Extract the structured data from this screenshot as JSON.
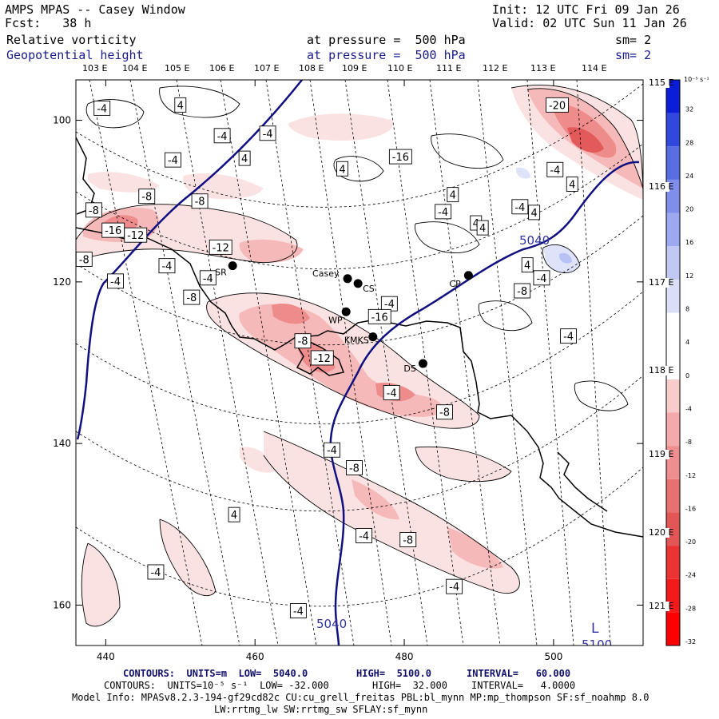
{
  "header": {
    "left1": "AMPS MPAS -- Casey Window",
    "left2": "Fcst:   38 h",
    "init": "Init: 12 UTC Fri 09 Jan 26",
    "valid": "Valid: 02 UTC Sun 11 Jan 26",
    "field1_name": "Relative vorticity",
    "field1_level": "at pressure =  500 hPa",
    "field1_sm": "sm= 2",
    "field2_name": "Geopotential height",
    "field2_level": "at pressure =  500 hPa",
    "field2_sm": "sm= 2"
  },
  "lon_labels": [
    "103 E",
    "104 E",
    "105 E",
    "106 E",
    "107 E",
    "108 E",
    "109 E",
    "110 E",
    "111 E",
    "112 E",
    "113 E",
    "114 E"
  ],
  "lat_labels": [
    "115 E",
    "116 E",
    "117 E",
    "118 E",
    "119 E",
    "120 E",
    "121 E"
  ],
  "colorbar": {
    "units_label": "10⁻⁵ s⁻¹",
    "ticks": [
      "32",
      "28",
      "24",
      "20",
      "16",
      "12",
      "8",
      "4",
      "0",
      "-4",
      "-8",
      "-12",
      "-16",
      "-20",
      "-24",
      "-28",
      "-32"
    ]
  },
  "footer": {
    "line1_a": "CONTOURS:  UNITS=m  LOW=  5040.0",
    "line1_b": "HIGH=  5100.0",
    "line1_c": "INTERVAL=   60.000",
    "line2_a": "CONTOURS:  UNITS=10⁻⁵ s⁻¹  LOW= -32.000",
    "line2_b": "HIGH=  32.000",
    "line2_c": "INTERVAL=   4.0000",
    "model1": "Model Info: MPASv8.2.3-194-gf29cd82c CU:cu_grell_freitas PBL:bl_mynn MP:mp_thompson SF:sf_noahmp 8.0",
    "model2": "LW:rrtmg_lw SW:rrtmg_sw SFLAY:sf_mynn"
  },
  "chart_data": {
    "type": "heatmap",
    "title": "AMPS MPAS -- Casey Window: 500 hPa relative vorticity and geopotential height",
    "x_axis": {
      "range": [
        436,
        512
      ],
      "ticks": [
        440,
        460,
        480,
        500
      ]
    },
    "y_axis": {
      "range": [
        165,
        95
      ],
      "ticks": [
        100,
        120,
        140,
        160
      ]
    },
    "vorticity_levels": [
      -32,
      -28,
      -24,
      -20,
      -16,
      -12,
      -8,
      -4,
      0,
      4,
      8,
      12,
      16,
      20,
      24,
      28,
      32
    ],
    "vorticity_units": "10⁻⁵ s⁻¹",
    "height_contours": [
      {
        "value": 5040,
        "label": "5040"
      },
      {
        "value": 5040,
        "label": "5040"
      },
      {
        "value": 5100,
        "label": "5100"
      }
    ],
    "vorticity_labels": [
      {
        "x": 439.5,
        "y": 98.6,
        "v": "-4"
      },
      {
        "x": 450.0,
        "y": 98.2,
        "v": "4"
      },
      {
        "x": 455.6,
        "y": 102.0,
        "v": "-4"
      },
      {
        "x": 449.0,
        "y": 105.0,
        "v": "-4"
      },
      {
        "x": 438.4,
        "y": 111.2,
        "v": "-8"
      },
      {
        "x": 445.5,
        "y": 109.5,
        "v": "-8"
      },
      {
        "x": 441.0,
        "y": 113.7,
        "v": "-16"
      },
      {
        "x": 444.0,
        "y": 114.3,
        "v": "-12"
      },
      {
        "x": 452.6,
        "y": 110.1,
        "v": "-8"
      },
      {
        "x": 455.4,
        "y": 115.8,
        "v": "-12"
      },
      {
        "x": 437.1,
        "y": 117.3,
        "v": "-8"
      },
      {
        "x": 441.3,
        "y": 120.0,
        "v": "-4"
      },
      {
        "x": 448.2,
        "y": 118.1,
        "v": "-4"
      },
      {
        "x": 453.7,
        "y": 119.6,
        "v": "-4"
      },
      {
        "x": 451.5,
        "y": 122.0,
        "v": "-8"
      },
      {
        "x": 461.7,
        "y": 101.7,
        "v": "-4"
      },
      {
        "x": 458.6,
        "y": 104.8,
        "v": "4"
      },
      {
        "x": 471.7,
        "y": 106.1,
        "v": "4"
      },
      {
        "x": 479.5,
        "y": 104.6,
        "v": "-16"
      },
      {
        "x": 485.2,
        "y": 111.4,
        "v": "-4"
      },
      {
        "x": 489.6,
        "y": 112.8,
        "v": "4"
      },
      {
        "x": 490.5,
        "y": 113.4,
        "v": "4"
      },
      {
        "x": 486.5,
        "y": 109.3,
        "v": "4"
      },
      {
        "x": 495.5,
        "y": 110.8,
        "v": "-4"
      },
      {
        "x": 500.5,
        "y": 98.2,
        "v": "-20"
      },
      {
        "x": 500.2,
        "y": 106.2,
        "v": "-4"
      },
      {
        "x": 502.5,
        "y": 108.0,
        "v": "4"
      },
      {
        "x": 497.4,
        "y": 111.5,
        "v": "4"
      },
      {
        "x": 496.5,
        "y": 118.0,
        "v": "4"
      },
      {
        "x": 498.4,
        "y": 119.6,
        "v": "-4"
      },
      {
        "x": 495.8,
        "y": 121.2,
        "v": "-8"
      },
      {
        "x": 502.0,
        "y": 126.8,
        "v": "-4"
      },
      {
        "x": 478.0,
        "y": 122.8,
        "v": "-4"
      },
      {
        "x": 476.7,
        "y": 124.4,
        "v": "-16"
      },
      {
        "x": 466.4,
        "y": 127.4,
        "v": "-8"
      },
      {
        "x": 469.0,
        "y": 129.5,
        "v": "-12"
      },
      {
        "x": 478.3,
        "y": 133.8,
        "v": "-4"
      },
      {
        "x": 485.4,
        "y": 136.2,
        "v": "-8"
      },
      {
        "x": 470.3,
        "y": 140.9,
        "v": "-4"
      },
      {
        "x": 473.3,
        "y": 143.1,
        "v": "-8"
      },
      {
        "x": 474.6,
        "y": 151.5,
        "v": "-4"
      },
      {
        "x": 480.5,
        "y": 152.0,
        "v": "-8"
      },
      {
        "x": 486.7,
        "y": 157.8,
        "v": "-4"
      },
      {
        "x": 465.8,
        "y": 160.8,
        "v": "-4"
      },
      {
        "x": 457.2,
        "y": 148.9,
        "v": "4"
      },
      {
        "x": 446.7,
        "y": 156.0,
        "v": "-4"
      }
    ],
    "stations": [
      {
        "name": "SR",
        "x": 457.0,
        "y": 118.0
      },
      {
        "name": "Casey",
        "x": 472.4,
        "y": 119.6
      },
      {
        "name": "CS",
        "x": 473.8,
        "y": 120.2
      },
      {
        "name": "CP",
        "x": 488.6,
        "y": 119.2
      },
      {
        "name": "WP",
        "x": 472.2,
        "y": 123.7
      },
      {
        "name": "KMKS",
        "x": 475.8,
        "y": 126.8
      },
      {
        "name": "DS",
        "x": 482.5,
        "y": 130.1
      }
    ],
    "low_label": "L"
  }
}
